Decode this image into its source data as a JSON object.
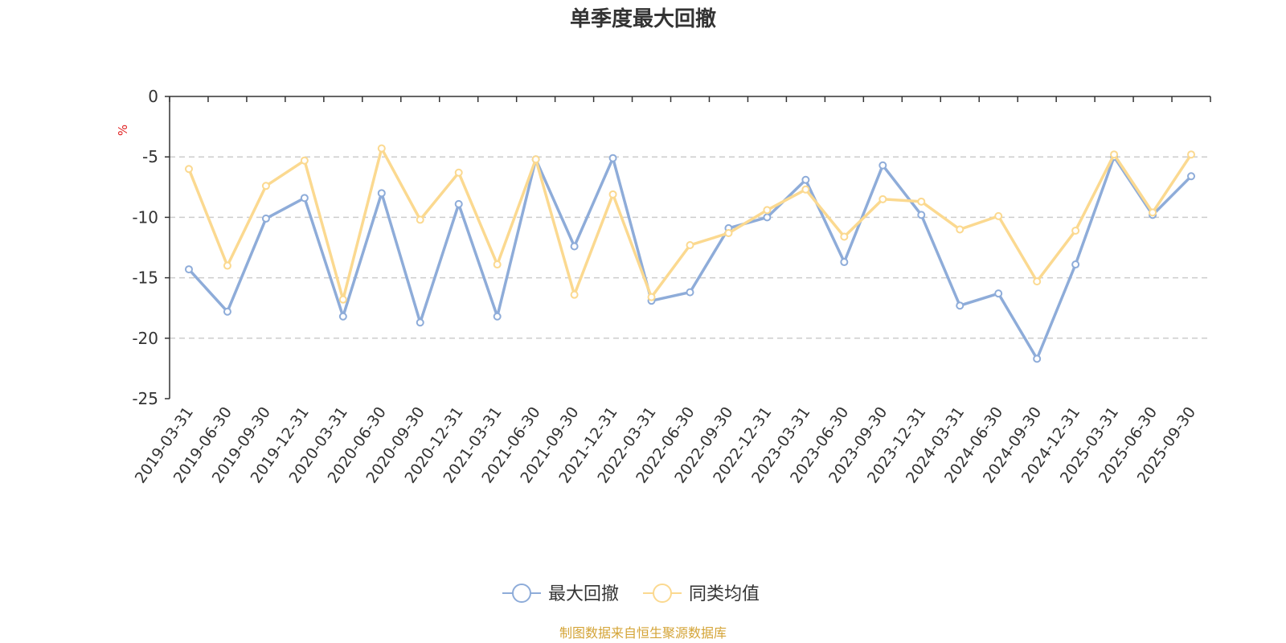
{
  "chart_data": {
    "type": "line",
    "title": "单季度最大回撤",
    "y_unit": "%",
    "ylim": [
      -25,
      0
    ],
    "y_ticks": [
      0,
      -5,
      -10,
      -15,
      -20,
      -25
    ],
    "grid": "horizontal dashed",
    "legend_position": "bottom-center",
    "x": [
      "2019-03-31",
      "2019-06-30",
      "2019-09-30",
      "2019-12-31",
      "2020-03-31",
      "2020-06-30",
      "2020-09-30",
      "2020-12-31",
      "2021-03-31",
      "2021-06-30",
      "2021-09-30",
      "2021-12-31",
      "2022-03-31",
      "2022-06-30",
      "2022-09-30",
      "2022-12-31",
      "2023-03-31",
      "2023-06-30",
      "2023-09-30",
      "2023-12-31",
      "2024-03-31",
      "2024-06-30",
      "2024-09-30",
      "2024-12-31",
      "2025-03-31",
      "2025-06-30",
      "2025-09-30"
    ],
    "series": [
      {
        "name": "最大回撤",
        "color": "#8eacd9",
        "values": [
          -14.3,
          -17.8,
          -10.1,
          -8.4,
          -18.2,
          -8.0,
          -18.7,
          -8.9,
          -18.2,
          -5.2,
          -12.4,
          -5.1,
          -16.9,
          -16.2,
          -10.9,
          -10.0,
          -6.9,
          -13.7,
          -5.7,
          -9.8,
          -17.3,
          -16.3,
          -21.7,
          -13.9,
          -5.0,
          -9.8,
          -6.6
        ]
      },
      {
        "name": "同类均值",
        "color": "#fbd990",
        "values": [
          -6.0,
          -14.0,
          -7.4,
          -5.3,
          -16.8,
          -4.3,
          -10.2,
          -6.3,
          -13.9,
          -5.2,
          -16.4,
          -8.1,
          -16.6,
          -12.3,
          -11.3,
          -9.4,
          -7.7,
          -11.6,
          -8.5,
          -8.7,
          -11.0,
          -9.9,
          -15.3,
          -11.1,
          -4.8,
          -9.6,
          -4.8
        ]
      }
    ]
  },
  "source_note": "制图数据来自恒生聚源数据库",
  "colors": {
    "axis": "#333333",
    "grid": "#cccccc",
    "unit": "#e02020",
    "source": "#d4a437"
  }
}
